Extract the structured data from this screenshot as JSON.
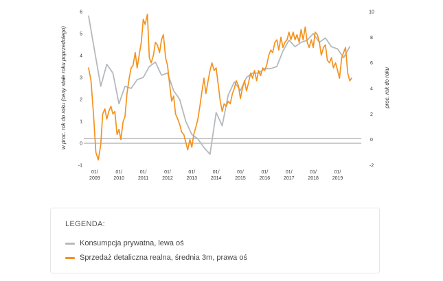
{
  "chart_data": {
    "type": "line",
    "y_left_label": "w proc. rok do roku (ceny stałe roku poprzedniego)",
    "y_right_label": "proc. rok do roku",
    "y_left_range": [
      -1,
      6
    ],
    "y_right_range": [
      -2,
      10
    ],
    "y_left_ticks": [
      "-1",
      "0",
      "1",
      "2",
      "3",
      "4",
      "5",
      "6"
    ],
    "y_right_ticks": [
      "-2",
      "0",
      "2",
      "4",
      "6",
      "8",
      "10"
    ],
    "x_ticks": [
      {
        "top": "01/",
        "bottom": "2009",
        "x": 2009.0
      },
      {
        "top": "01/",
        "bottom": "2010",
        "x": 2010.0
      },
      {
        "top": "01/",
        "bottom": "2011",
        "x": 2011.0
      },
      {
        "top": "01/",
        "bottom": "2012",
        "x": 2012.0
      },
      {
        "top": "01/",
        "bottom": "2013",
        "x": 2013.0
      },
      {
        "top": "01/",
        "bottom": "2014",
        "x": 2014.0
      },
      {
        "top": "01/",
        "bottom": "2015",
        "x": 2015.0
      },
      {
        "top": "01/",
        "bottom": "2016",
        "x": 2016.0
      },
      {
        "top": "01/",
        "bottom": "2017",
        "x": 2017.0
      },
      {
        "top": "01/",
        "bottom": "2018",
        "x": 2018.0
      },
      {
        "top": "01/",
        "bottom": "2019",
        "x": 2019.0
      }
    ],
    "x_range": [
      2008.75,
      2019.75
    ],
    "reference_lines_left_axis": [
      0,
      0.2
    ],
    "series": [
      {
        "name": "Konsumpcja prywatna, lewa oś",
        "axis": "left",
        "color": "#b4b9bd",
        "points": [
          [
            2008.75,
            5.8
          ],
          [
            2009.0,
            4.2
          ],
          [
            2009.25,
            2.6
          ],
          [
            2009.5,
            3.6
          ],
          [
            2009.75,
            3.2
          ],
          [
            2010.0,
            1.8
          ],
          [
            2010.25,
            2.6
          ],
          [
            2010.5,
            2.5
          ],
          [
            2010.75,
            2.9
          ],
          [
            2011.0,
            3.0
          ],
          [
            2011.25,
            3.5
          ],
          [
            2011.5,
            3.7
          ],
          [
            2011.75,
            3.1
          ],
          [
            2012.0,
            3.2
          ],
          [
            2012.25,
            2.4
          ],
          [
            2012.5,
            2.0
          ],
          [
            2012.75,
            1.0
          ],
          [
            2013.0,
            0.4
          ],
          [
            2013.25,
            0.2
          ],
          [
            2013.5,
            -0.2
          ],
          [
            2013.75,
            -0.5
          ],
          [
            2014.0,
            1.4
          ],
          [
            2014.25,
            0.8
          ],
          [
            2014.5,
            2.2
          ],
          [
            2014.75,
            2.8
          ],
          [
            2015.0,
            2.4
          ],
          [
            2015.25,
            3.0
          ],
          [
            2015.5,
            3.2
          ],
          [
            2015.75,
            3.2
          ],
          [
            2016.0,
            3.4
          ],
          [
            2016.25,
            3.4
          ],
          [
            2016.5,
            3.5
          ],
          [
            2016.75,
            4.2
          ],
          [
            2017.0,
            4.7
          ],
          [
            2017.25,
            4.4
          ],
          [
            2017.5,
            4.6
          ],
          [
            2017.75,
            4.7
          ],
          [
            2018.0,
            5.0
          ],
          [
            2018.25,
            4.6
          ],
          [
            2018.5,
            4.8
          ],
          [
            2018.75,
            4.4
          ],
          [
            2019.0,
            4.3
          ],
          [
            2019.25,
            3.9
          ],
          [
            2019.5,
            4.4
          ]
        ]
      },
      {
        "name": "Sprzedaż detaliczna realna, średnia 3m, prawa oś",
        "axis": "right",
        "color": "#f5921e",
        "points": [
          [
            2008.75,
            5.6
          ],
          [
            2008.85,
            4.6
          ],
          [
            2008.95,
            2.0
          ],
          [
            2009.05,
            -1.0
          ],
          [
            2009.15,
            -1.6
          ],
          [
            2009.25,
            -0.4
          ],
          [
            2009.33,
            2.0
          ],
          [
            2009.42,
            2.4
          ],
          [
            2009.5,
            1.6
          ],
          [
            2009.58,
            2.2
          ],
          [
            2009.67,
            2.6
          ],
          [
            2009.75,
            2.0
          ],
          [
            2009.83,
            2.2
          ],
          [
            2009.92,
            0.4
          ],
          [
            2010.0,
            0.8
          ],
          [
            2010.08,
            0.0
          ],
          [
            2010.17,
            1.4
          ],
          [
            2010.25,
            1.8
          ],
          [
            2010.33,
            3.6
          ],
          [
            2010.42,
            4.8
          ],
          [
            2010.5,
            5.6
          ],
          [
            2010.58,
            5.8
          ],
          [
            2010.67,
            6.8
          ],
          [
            2010.75,
            5.6
          ],
          [
            2010.83,
            6.6
          ],
          [
            2010.92,
            7.6
          ],
          [
            2011.0,
            9.4
          ],
          [
            2011.08,
            9.0
          ],
          [
            2011.17,
            9.8
          ],
          [
            2011.25,
            6.4
          ],
          [
            2011.33,
            6.0
          ],
          [
            2011.42,
            6.6
          ],
          [
            2011.5,
            7.6
          ],
          [
            2011.58,
            7.4
          ],
          [
            2011.67,
            6.8
          ],
          [
            2011.75,
            7.8
          ],
          [
            2011.83,
            8.2
          ],
          [
            2011.92,
            6.4
          ],
          [
            2012.0,
            5.8
          ],
          [
            2012.08,
            4.4
          ],
          [
            2012.17,
            3.0
          ],
          [
            2012.25,
            3.4
          ],
          [
            2012.33,
            2.0
          ],
          [
            2012.42,
            1.6
          ],
          [
            2012.5,
            1.2
          ],
          [
            2012.58,
            0.6
          ],
          [
            2012.67,
            0.4
          ],
          [
            2012.75,
            -0.2
          ],
          [
            2012.83,
            -0.8
          ],
          [
            2012.92,
            0.0
          ],
          [
            2013.0,
            -0.6
          ],
          [
            2013.08,
            0.4
          ],
          [
            2013.17,
            1.0
          ],
          [
            2013.25,
            1.6
          ],
          [
            2013.33,
            2.6
          ],
          [
            2013.42,
            3.8
          ],
          [
            2013.5,
            4.8
          ],
          [
            2013.58,
            3.6
          ],
          [
            2013.67,
            4.6
          ],
          [
            2013.75,
            5.4
          ],
          [
            2013.83,
            6.0
          ],
          [
            2013.92,
            5.4
          ],
          [
            2014.0,
            5.6
          ],
          [
            2014.08,
            4.4
          ],
          [
            2014.17,
            3.0
          ],
          [
            2014.25,
            2.2
          ],
          [
            2014.33,
            2.8
          ],
          [
            2014.42,
            2.6
          ],
          [
            2014.5,
            3.0
          ],
          [
            2014.58,
            2.8
          ],
          [
            2014.67,
            3.6
          ],
          [
            2014.75,
            4.0
          ],
          [
            2014.83,
            4.6
          ],
          [
            2014.92,
            4.2
          ],
          [
            2015.0,
            3.2
          ],
          [
            2015.08,
            4.0
          ],
          [
            2015.17,
            4.6
          ],
          [
            2015.25,
            3.8
          ],
          [
            2015.33,
            4.4
          ],
          [
            2015.42,
            5.2
          ],
          [
            2015.5,
            4.8
          ],
          [
            2015.58,
            5.4
          ],
          [
            2015.67,
            4.6
          ],
          [
            2015.75,
            5.4
          ],
          [
            2015.83,
            5.0
          ],
          [
            2015.92,
            5.6
          ],
          [
            2016.0,
            5.4
          ],
          [
            2016.08,
            5.8
          ],
          [
            2016.17,
            6.6
          ],
          [
            2016.25,
            7.0
          ],
          [
            2016.33,
            6.8
          ],
          [
            2016.42,
            7.6
          ],
          [
            2016.5,
            7.8
          ],
          [
            2016.58,
            7.0
          ],
          [
            2016.67,
            8.0
          ],
          [
            2016.75,
            7.2
          ],
          [
            2016.83,
            7.6
          ],
          [
            2016.92,
            7.8
          ],
          [
            2017.0,
            8.4
          ],
          [
            2017.08,
            7.8
          ],
          [
            2017.17,
            8.4
          ],
          [
            2017.25,
            7.8
          ],
          [
            2017.33,
            8.2
          ],
          [
            2017.42,
            7.6
          ],
          [
            2017.5,
            8.6
          ],
          [
            2017.58,
            7.8
          ],
          [
            2017.67,
            8.8
          ],
          [
            2017.75,
            7.6
          ],
          [
            2017.83,
            7.2
          ],
          [
            2017.92,
            7.8
          ],
          [
            2018.0,
            7.2
          ],
          [
            2018.08,
            8.4
          ],
          [
            2018.17,
            8.2
          ],
          [
            2018.25,
            7.6
          ],
          [
            2018.33,
            6.6
          ],
          [
            2018.42,
            7.2
          ],
          [
            2018.5,
            7.4
          ],
          [
            2018.58,
            6.2
          ],
          [
            2018.67,
            6.0
          ],
          [
            2018.75,
            6.4
          ],
          [
            2018.83,
            5.6
          ],
          [
            2018.92,
            6.0
          ],
          [
            2019.0,
            5.4
          ],
          [
            2019.08,
            4.8
          ],
          [
            2019.17,
            6.4
          ],
          [
            2019.25,
            6.8
          ],
          [
            2019.33,
            7.2
          ],
          [
            2019.42,
            5.2
          ],
          [
            2019.5,
            4.6
          ],
          [
            2019.58,
            4.8
          ]
        ]
      }
    ]
  },
  "legend": {
    "title": "LEGENDA:",
    "items": [
      {
        "label": "Konsumpcja prywatna, lewa oś",
        "color": "#b4b9bd"
      },
      {
        "label": "Sprzedaż detaliczna realna, średnia 3m, prawa oś",
        "color": "#f5921e"
      }
    ]
  }
}
